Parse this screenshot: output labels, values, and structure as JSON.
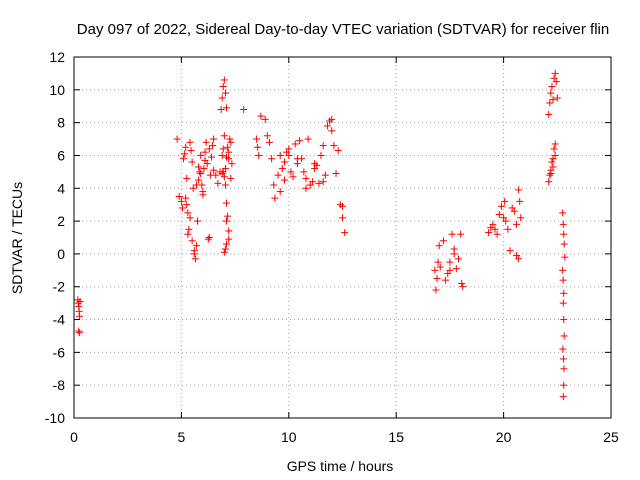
{
  "chart_data": {
    "type": "scatter",
    "title": "Day 097 of 2022, Sidereal Day-to-day VTEC variation (SDTVAR) for receiver flin",
    "xlabel": "GPS time / hours",
    "ylabel": "SDTVAR / TECUs",
    "xlim": [
      0,
      25
    ],
    "ylim": [
      -10,
      12
    ],
    "xticks": [
      0,
      5,
      10,
      15,
      20,
      25
    ],
    "yticks": [
      -10,
      -8,
      -6,
      -4,
      -2,
      0,
      2,
      4,
      6,
      8,
      10,
      12
    ],
    "grid": true,
    "marker": "+",
    "color": "#ff0000",
    "series": [
      {
        "name": "SDTVAR",
        "x": [
          0.18,
          0.2,
          0.22,
          0.24,
          0.26,
          0.28,
          0.22,
          0.25,
          4.8,
          4.9,
          5.0,
          5.05,
          5.1,
          5.15,
          5.2,
          5.25,
          5.3,
          5.35,
          5.4,
          5.45,
          5.5,
          5.55,
          5.6,
          5.65,
          5.7,
          5.75,
          5.8,
          5.85,
          5.9,
          5.95,
          6.0,
          6.05,
          6.1,
          6.15,
          6.2,
          6.25,
          6.3,
          6.35,
          6.4,
          6.45,
          6.5,
          5.3,
          5.4,
          5.5,
          5.6,
          5.7,
          5.2,
          5.25,
          5.8,
          5.9,
          6.0,
          6.1,
          6.3,
          6.5,
          6.6,
          6.7,
          6.8,
          6.85,
          6.9,
          6.95,
          7.0,
          7.05,
          7.1,
          7.15,
          7.2,
          7.25,
          7.3,
          7.35,
          7.0,
          7.05,
          7.1,
          6.9,
          6.95,
          7.0,
          7.05,
          7.1,
          7.15,
          7.2,
          6.9,
          7.0,
          7.1,
          7.2,
          7.3,
          7.1,
          7.2,
          6.95,
          7.05,
          7.9,
          8.5,
          8.55,
          8.6,
          8.7,
          8.9,
          9.0,
          9.1,
          9.2,
          9.3,
          9.35,
          9.5,
          9.6,
          9.7,
          9.8,
          9.9,
          10.0,
          10.1,
          10.2,
          10.3,
          10.4,
          10.5,
          10.6,
          10.7,
          10.8,
          10.9,
          11.0,
          11.1,
          11.2,
          11.3,
          11.4,
          11.5,
          11.6,
          11.7,
          11.8,
          11.9,
          12.0,
          12.1,
          12.2,
          9.6,
          9.8,
          10.0,
          10.4,
          10.8,
          11.2,
          11.6,
          12.0,
          12.3,
          12.4,
          12.5,
          12.6,
          12.5,
          16.8,
          16.85,
          16.9,
          16.95,
          17.0,
          17.05,
          17.2,
          17.4,
          17.5,
          17.6,
          17.7,
          17.8,
          17.9,
          18.0,
          18.05,
          18.1,
          17.3,
          17.5,
          17.7,
          19.3,
          19.4,
          19.5,
          19.6,
          19.7,
          19.8,
          19.9,
          20.0,
          20.05,
          20.1,
          20.2,
          20.3,
          20.4,
          20.5,
          20.6,
          20.7,
          20.75,
          20.8,
          20.6,
          20.7,
          22.1,
          22.15,
          22.2,
          22.25,
          22.3,
          22.35,
          22.4,
          22.45,
          22.5,
          22.1,
          22.2,
          22.3,
          22.4,
          22.15,
          22.25,
          22.35,
          22.2,
          22.3,
          22.4,
          22.75,
          22.78,
          22.8,
          22.82,
          22.85,
          22.75,
          22.77,
          22.8,
          22.78,
          22.8,
          22.82,
          22.76,
          22.79,
          22.81,
          22.8,
          22.78
        ],
        "y": [
          -2.8,
          -3.0,
          -3.2,
          -3.5,
          -3.8,
          -2.9,
          -4.7,
          -4.8,
          7.0,
          3.5,
          3.2,
          2.8,
          5.8,
          6.1,
          6.5,
          3.0,
          2.5,
          1.5,
          6.8,
          6.3,
          5.6,
          4.0,
          0.2,
          -0.3,
          0.5,
          2.0,
          4.5,
          5.0,
          6.0,
          4.2,
          3.8,
          5.2,
          6.2,
          6.8,
          5.5,
          0.9,
          1.0,
          4.8,
          5.9,
          6.6,
          7.0,
          1.2,
          2.2,
          0.8,
          0.0,
          4.2,
          3.4,
          4.6,
          5.3,
          4.9,
          3.6,
          5.7,
          6.4,
          5.1,
          4.8,
          4.3,
          5.0,
          8.8,
          9.5,
          10.2,
          10.6,
          9.8,
          8.9,
          6.5,
          5.8,
          7.0,
          4.6,
          5.5,
          0.1,
          0.3,
          0.6,
          6.0,
          6.4,
          7.2,
          5.2,
          3.1,
          2.3,
          1.4,
          4.9,
          4.7,
          5.9,
          6.2,
          6.8,
          2.0,
          0.9,
          5.0,
          4.2,
          8.8,
          7.0,
          6.5,
          6.0,
          8.4,
          8.2,
          7.2,
          6.8,
          5.8,
          4.2,
          3.4,
          4.8,
          6.0,
          5.2,
          4.5,
          6.2,
          6.4,
          5.0,
          4.7,
          6.7,
          5.5,
          6.9,
          5.8,
          5.0,
          4.6,
          7.0,
          4.2,
          4.4,
          5.2,
          5.4,
          4.3,
          6.0,
          6.6,
          4.8,
          7.8,
          8.1,
          7.5,
          6.6,
          4.9,
          3.8,
          5.6,
          6.0,
          5.8,
          4.0,
          5.5,
          4.4,
          8.2,
          6.3,
          3.0,
          2.2,
          1.3,
          2.9,
          -1.0,
          -2.2,
          -1.5,
          -0.5,
          0.5,
          -0.8,
          0.8,
          -1.2,
          -0.5,
          1.2,
          0.0,
          -0.9,
          -0.3,
          1.2,
          -1.8,
          -2.0,
          -1.6,
          -1.0,
          0.3,
          1.3,
          1.6,
          1.8,
          1.5,
          1.2,
          2.4,
          2.9,
          2.2,
          3.2,
          2.0,
          1.5,
          0.2,
          2.8,
          2.6,
          1.8,
          3.9,
          3.2,
          2.2,
          -0.1,
          -0.3,
          8.5,
          9.2,
          9.8,
          10.2,
          9.4,
          10.7,
          11.0,
          10.5,
          9.5,
          4.4,
          4.9,
          5.3,
          6.0,
          4.8,
          5.6,
          6.4,
          5.1,
          5.8,
          6.7,
          2.5,
          1.8,
          1.2,
          0.6,
          -0.2,
          -1.0,
          -1.6,
          -2.4,
          -3.0,
          -4.0,
          -5.0,
          -5.8,
          -6.4,
          -7.0,
          -8.0,
          -8.7
        ]
      }
    ]
  }
}
